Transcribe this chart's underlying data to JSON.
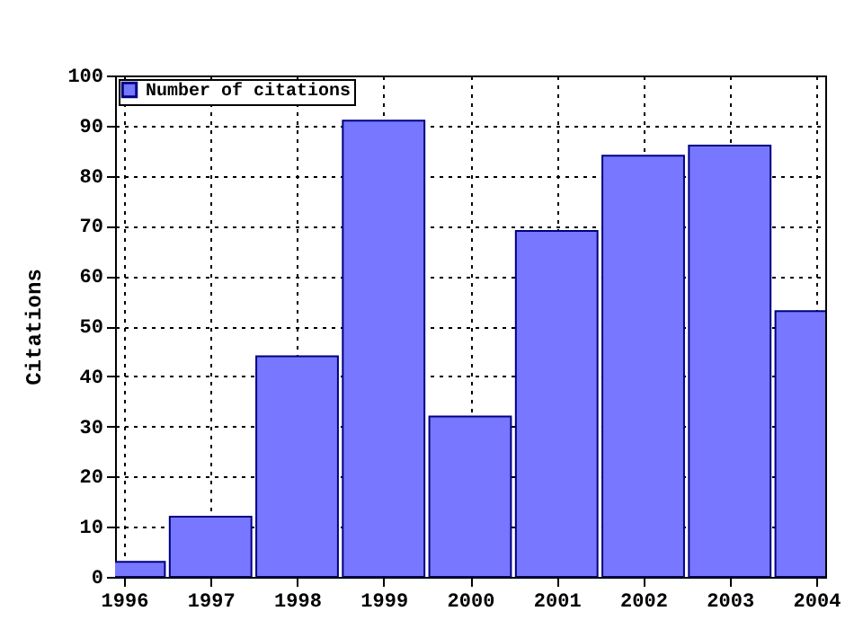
{
  "chart_data": {
    "type": "bar",
    "ylabel": "Citations",
    "x": [
      1996,
      1997,
      1998,
      1999,
      2000,
      2001,
      2002,
      2003,
      2004
    ],
    "series": [
      {
        "name": "Number of citations",
        "color": "#7777ff",
        "values": [
          3,
          12,
          44,
          91,
          32,
          69,
          84,
          86,
          53
        ]
      }
    ],
    "xlim": [
      1996,
      2004
    ],
    "xticks": [
      1996,
      1997,
      1998,
      1999,
      2000,
      2001,
      2002,
      2003,
      2004
    ],
    "ylim": [
      0,
      100
    ],
    "yticks": [
      0,
      10,
      20,
      30,
      40,
      50,
      60,
      70,
      80,
      90,
      100
    ],
    "grid": true,
    "legend": "top left"
  }
}
